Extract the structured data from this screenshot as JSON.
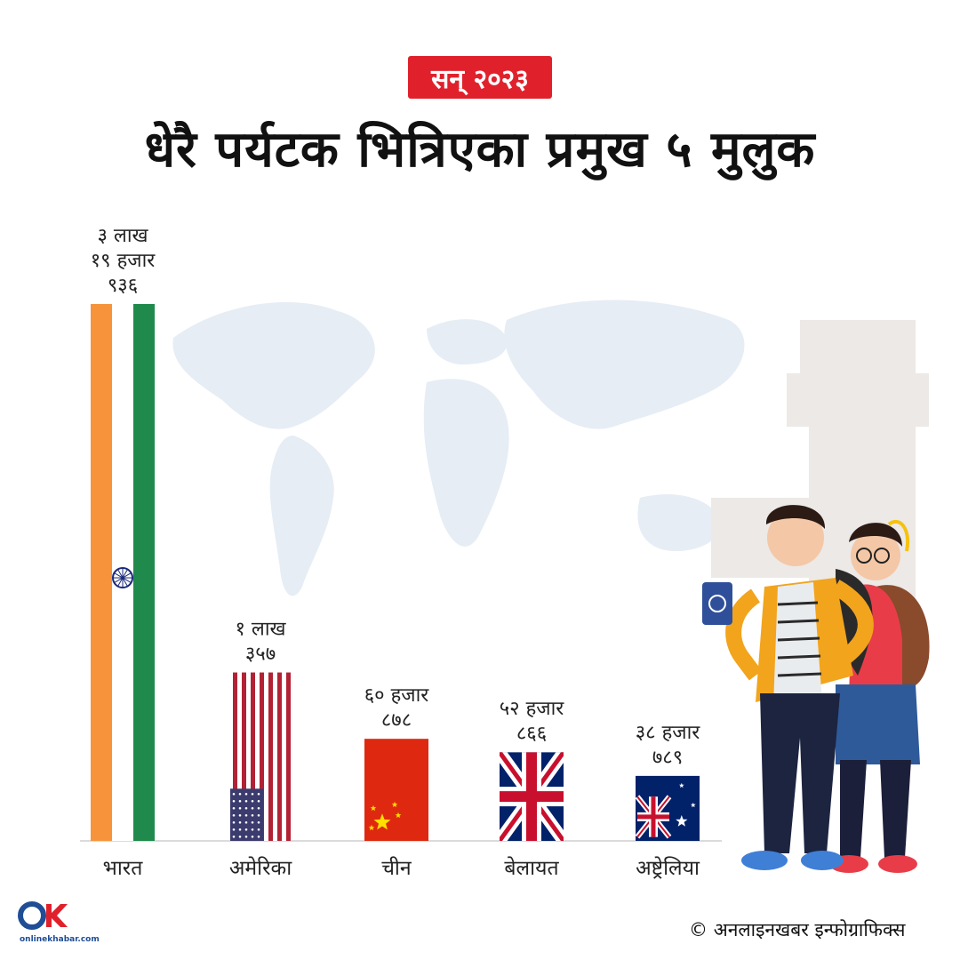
{
  "header": {
    "year_badge": "सन् २०२३",
    "title": "धेरै पर्यटक भित्रिएका प्रमुख ५ मुलुक"
  },
  "chart_data": {
    "type": "bar",
    "title": "धेरै पर्यटक भित्रिएका प्रमुख ५ मुलुक",
    "categories": [
      "भारत",
      "अमेरिका",
      "चीन",
      "बेलायत",
      "अष्ट्रेलिया"
    ],
    "values": [
      319936,
      100357,
      60878,
      52866,
      38789
    ],
    "value_labels": [
      [
        "३ लाख",
        "१९ हजार",
        "९३६"
      ],
      [
        "१ लाख",
        "३५७"
      ],
      [
        "६० हजार",
        "८७८"
      ],
      [
        "५२ हजार",
        "८६६"
      ],
      [
        "३८ हजार",
        "७८९"
      ]
    ],
    "bar_fill": [
      "india-flag",
      "usa-flag",
      "china-flag",
      "uk-flag",
      "australia-flag"
    ],
    "ylim": [
      0,
      319936
    ],
    "grid": false,
    "xlabel": "",
    "ylabel": ""
  },
  "colors": {
    "accent": "#e0212c",
    "india_saffron": "#f7943b",
    "india_green": "#1f8a4c",
    "us_red": "#b22234",
    "us_blue": "#3c3b6e",
    "china_red": "#de2910",
    "china_star": "#ffde00",
    "uk_blue": "#012169",
    "uk_red": "#c8102e"
  },
  "footer": {
    "credit_symbol": "©",
    "credit_text": "अनलाइनखबर इन्फोग्राफिक्स",
    "logo_mark": "OK",
    "logo_text": "onlinekhabar.com"
  }
}
